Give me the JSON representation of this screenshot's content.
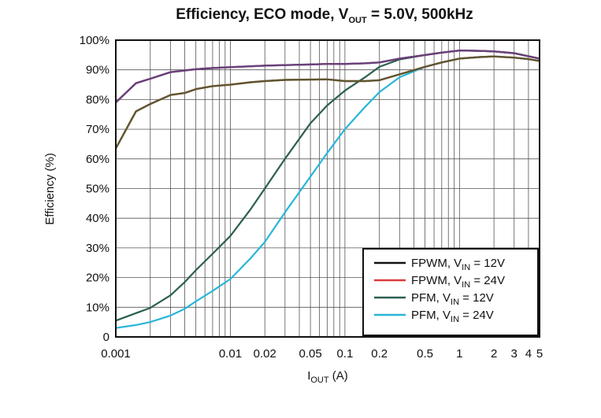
{
  "chart_data": {
    "type": "line",
    "title": {
      "main": "Efficiency, ECO mode, V",
      "sub": "OUT",
      "tail": " = 5.0V, 500kHz"
    },
    "xlabel": {
      "main": "I",
      "sub": "OUT",
      "tail": " (A)"
    },
    "ylabel": "Efficiency (%)",
    "xscale": "log",
    "xlim": [
      0.001,
      5
    ],
    "ylim": [
      0,
      100
    ],
    "grid": true,
    "x_ticks": [
      {
        "value": 0.001,
        "label": "0.001"
      },
      {
        "value": 0.01,
        "label": "0.01"
      },
      {
        "value": 0.02,
        "label": "0.02"
      },
      {
        "value": 0.05,
        "label": "0.05"
      },
      {
        "value": 0.1,
        "label": "0.1"
      },
      {
        "value": 0.2,
        "label": "0.2"
      },
      {
        "value": 0.5,
        "label": "0.5"
      },
      {
        "value": 1,
        "label": "1"
      },
      {
        "value": 2,
        "label": "2"
      },
      {
        "value": 3,
        "label": "3"
      },
      {
        "value": 4,
        "label": "4"
      },
      {
        "value": 5,
        "label": "5"
      }
    ],
    "y_ticks": [
      {
        "value": 0,
        "label": "0"
      },
      {
        "value": 10,
        "label": "10%"
      },
      {
        "value": 20,
        "label": "20%"
      },
      {
        "value": 30,
        "label": "30%"
      },
      {
        "value": 40,
        "label": "40%"
      },
      {
        "value": 50,
        "label": "50%"
      },
      {
        "value": 60,
        "label": "60%"
      },
      {
        "value": 70,
        "label": "70%"
      },
      {
        "value": 80,
        "label": "80%"
      },
      {
        "value": 90,
        "label": "90%"
      },
      {
        "value": 100,
        "label": "100%"
      }
    ],
    "legend_position": "bottom-right",
    "series": [
      {
        "name": {
          "main": "FPWM, V",
          "sub": "IN",
          "tail": " = 12V"
        },
        "color": "#111111",
        "x": [
          0.001,
          0.0015,
          0.002,
          0.003,
          0.004,
          0.005,
          0.007,
          0.01,
          0.015,
          0.02,
          0.03,
          0.05,
          0.07,
          0.1,
          0.15,
          0.2,
          0.3,
          0.5,
          0.7,
          1,
          1.5,
          2,
          3,
          4,
          5
        ],
        "y": [
          79,
          85.5,
          87,
          89.2,
          89.8,
          90.2,
          90.6,
          90.9,
          91.2,
          91.4,
          91.6,
          91.8,
          92,
          92,
          92.2,
          92.5,
          93.8,
          95,
          95.8,
          96.5,
          96.4,
          96.2,
          95.6,
          94.6,
          93.8
        ]
      },
      {
        "name": {
          "main": "FPWM, V",
          "sub": "IN",
          "tail": " = 24V"
        },
        "color": "#d93a3a",
        "x": [
          0.001,
          0.0015,
          0.002,
          0.003,
          0.004,
          0.005,
          0.007,
          0.01,
          0.015,
          0.02,
          0.03,
          0.05,
          0.07,
          0.1,
          0.15,
          0.2,
          0.3,
          0.5,
          0.7,
          1,
          1.5,
          2,
          3,
          4,
          5
        ],
        "y": [
          63.5,
          76,
          78.5,
          81.5,
          82.2,
          83.5,
          84.5,
          85,
          85.8,
          86.2,
          86.6,
          86.7,
          86.8,
          86.2,
          86.2,
          86.5,
          88.5,
          91,
          92.5,
          93.8,
          94.3,
          94.5,
          94.1,
          93.6,
          93
        ]
      },
      {
        "name": {
          "main": "PFM, V",
          "sub": "IN",
          "tail": " = 12V"
        },
        "color": "#2b5f52",
        "x": [
          0.001,
          0.0015,
          0.002,
          0.003,
          0.004,
          0.005,
          0.007,
          0.01,
          0.015,
          0.02,
          0.03,
          0.05,
          0.07,
          0.1,
          0.15,
          0.2,
          0.3,
          0.5,
          0.7,
          1,
          1.5,
          2,
          3,
          4,
          5
        ],
        "y": [
          5.5,
          8,
          9.8,
          14,
          18.5,
          22.5,
          28,
          34,
          43,
          50,
          60,
          72,
          78,
          83,
          87.5,
          91,
          93.5,
          95,
          95.8,
          96.5,
          96.4,
          96.2,
          95.6,
          94.6,
          93.8
        ]
      },
      {
        "name": {
          "main": "PFM, V",
          "sub": "IN",
          "tail": " = 24V"
        },
        "color": "#29b6d9",
        "x": [
          0.001,
          0.0015,
          0.002,
          0.003,
          0.004,
          0.005,
          0.007,
          0.01,
          0.015,
          0.02,
          0.03,
          0.05,
          0.07,
          0.1,
          0.15,
          0.2,
          0.3,
          0.5,
          0.7,
          1,
          1.5,
          2,
          3,
          4,
          5
        ],
        "y": [
          3,
          4,
          5,
          7.2,
          9.5,
          12,
          15.5,
          19.5,
          26.5,
          32,
          42,
          54,
          62,
          70,
          77.5,
          82.5,
          87.5,
          91,
          92.5,
          93.8,
          94.3,
          94.5,
          94.1,
          93.6,
          93
        ]
      }
    ],
    "render_order": [
      3,
      1,
      2,
      0
    ],
    "overlay_lines": [
      {
        "color": "#5f5530",
        "x": [
          0.001,
          0.0015,
          0.002,
          0.003,
          0.004,
          0.005,
          0.007,
          0.01,
          0.015,
          0.02,
          0.03,
          0.05,
          0.07,
          0.1,
          0.15,
          0.2,
          0.3,
          0.5,
          0.7,
          1,
          1.5,
          2,
          3,
          4,
          5
        ],
        "y": [
          63.5,
          76,
          78.5,
          81.5,
          82.2,
          83.5,
          84.5,
          85,
          85.8,
          86.2,
          86.6,
          86.7,
          86.8,
          86.2,
          86.2,
          86.5,
          88.5,
          91,
          92.5,
          93.8,
          94.3,
          94.5,
          94.1,
          93.6,
          93
        ]
      },
      {
        "color": "#6b3f7a",
        "x": [
          0.001,
          0.0015,
          0.002,
          0.003,
          0.004,
          0.005,
          0.007,
          0.01,
          0.015,
          0.02,
          0.03,
          0.05,
          0.07,
          0.1,
          0.15,
          0.2,
          0.3,
          0.5,
          0.7,
          1,
          1.5,
          2,
          3,
          4,
          5
        ],
        "y": [
          79,
          85.5,
          87,
          89.2,
          89.8,
          90.2,
          90.6,
          90.9,
          91.2,
          91.4,
          91.6,
          91.8,
          92,
          92,
          92.2,
          92.5,
          93.8,
          95,
          95.8,
          96.5,
          96.4,
          96.2,
          95.6,
          94.6,
          93.8
        ]
      }
    ]
  }
}
